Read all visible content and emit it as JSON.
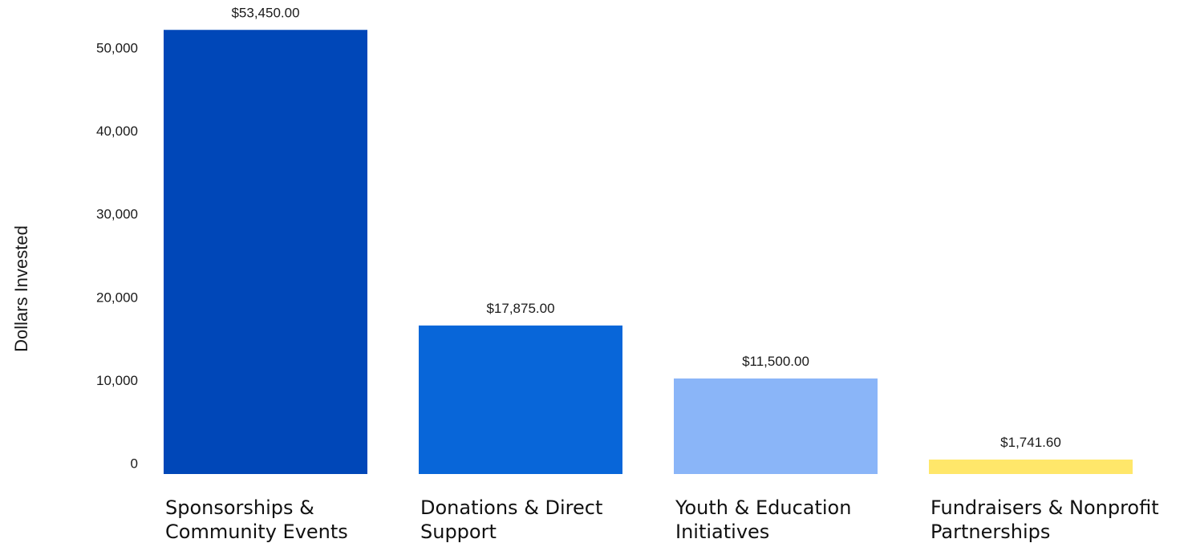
{
  "chart_data": {
    "type": "bar",
    "ylabel": "Dollars Invested",
    "xlabel": "",
    "ylim": [
      0,
      54000
    ],
    "yticks": [
      0,
      10000,
      20000,
      30000,
      40000,
      50000
    ],
    "ytick_labels": [
      "0",
      "10,000",
      "20,000",
      "30,000",
      "40,000",
      "50,000"
    ],
    "grid": false,
    "categories": [
      [
        "Sponsorships &",
        "Community Events"
      ],
      [
        "Donations & Direct",
        "Support"
      ],
      [
        "Youth & Education",
        "Initiatives"
      ],
      [
        "Fundraisers & Nonprofit",
        "Partnerships"
      ]
    ],
    "values": [
      53450,
      17875,
      11500,
      1741.6
    ],
    "data_labels": [
      "$53,450.00",
      "$17,875.00",
      "$11,500.00",
      "$1,741.60"
    ],
    "colors": [
      "#0047B8",
      "#0866D9",
      "#8AB5F8",
      "#FFE76A"
    ]
  }
}
